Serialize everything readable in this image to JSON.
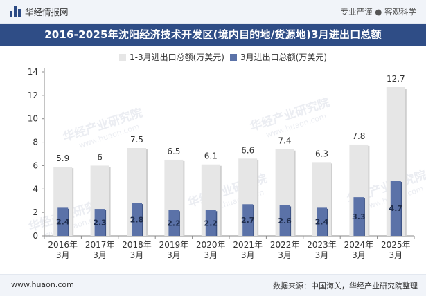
{
  "header": {
    "brand": "华经情报网",
    "tagline": "专业严谨 ● 客观科学"
  },
  "title": "2016-2025年沈阳经济技术开发区(境内目的地/货源地)3月进出口总额",
  "footer": {
    "website": "www.huaon.com",
    "source": "数据来源：中国海关，华经产业研究院整理"
  },
  "watermark": "华经产业研究院",
  "watermark_url": "www.huaon.com",
  "colors": {
    "series1": "#e6e6e6",
    "series2": "#5b72a8",
    "title_bg": "#2f4d86"
  },
  "chart_data": {
    "type": "bar",
    "categories": [
      "2016年\n3月",
      "2017年\n3月",
      "2018年\n3月",
      "2019年\n3月",
      "2020年\n3月",
      "2021年\n3月",
      "2022年\n3月",
      "2023年\n3月",
      "2024年\n3月",
      "2025年\n3月"
    ],
    "series": [
      {
        "name": "1-3月进出口总额(万美元)",
        "values": [
          5.9,
          6,
          7.5,
          6.5,
          6.1,
          6.6,
          7.4,
          6.3,
          7.8,
          12.7
        ]
      },
      {
        "name": "3月进出口总额(万美元)",
        "values": [
          2.4,
          2.3,
          2.8,
          2.2,
          2.2,
          2.7,
          2.6,
          2.4,
          3.3,
          4.7
        ]
      }
    ],
    "ylim": [
      0,
      14
    ],
    "yticks": [
      0,
      2,
      4,
      6,
      8,
      10,
      12,
      14
    ],
    "legend": "top",
    "grid": false
  }
}
